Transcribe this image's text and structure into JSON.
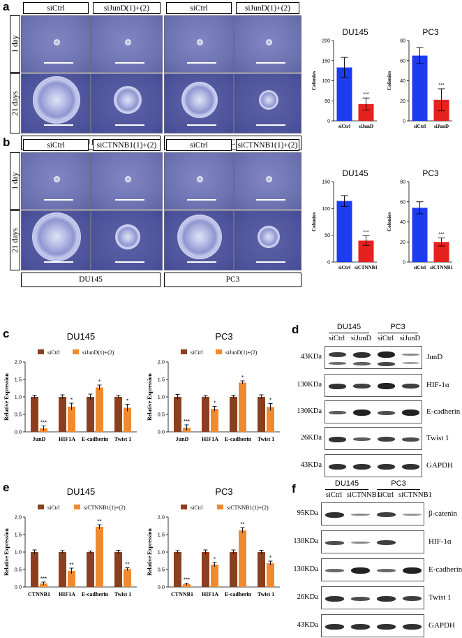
{
  "panels": {
    "a": {
      "letter": "a",
      "columns": [
        "siCtrl",
        "siJunD(1)+(2)",
        "siCtrl",
        "siJunD(1)+(2)"
      ],
      "rows": [
        "1 day",
        "21 days"
      ],
      "cell_lines": [
        "DU145",
        "PC3"
      ]
    },
    "b": {
      "letter": "b",
      "columns": [
        "siCtrl",
        "siCTNNB1(1)+(2)",
        "siCtrl",
        "siCTNNB1(1)+(2)"
      ],
      "rows": [
        "1 day",
        "21 days"
      ],
      "cell_lines": [
        "DU145",
        "PC3"
      ]
    },
    "c": {
      "letter": "c"
    },
    "d": {
      "letter": "d",
      "groups": [
        "DU145",
        "PC3"
      ],
      "lanes": [
        "siCtrl",
        "siJunD",
        "siCtrl",
        "siJunD"
      ],
      "rows": [
        {
          "kda": "43KDa",
          "protein": "JunD"
        },
        {
          "kda": "130KDa",
          "protein": "HIF-1α"
        },
        {
          "kda": "130KDa",
          "protein": "E-cadherin"
        },
        {
          "kda": "26KDa",
          "protein": "Twist 1"
        },
        {
          "kda": "43KDa",
          "protein": "GAPDH"
        }
      ]
    },
    "e": {
      "letter": "e"
    },
    "f": {
      "letter": "f",
      "groups": [
        "DU145",
        "PC3"
      ],
      "lanes": [
        "siCtrl",
        "siCTNNB1",
        "siCtrl",
        "siCTNNB1"
      ],
      "rows": [
        {
          "kda": "95KDa",
          "protein": "β-catenin"
        },
        {
          "kda": "130KDa",
          "protein": "HIF-1α"
        },
        {
          "kda": "130KDa",
          "protein": "E-cadherin"
        },
        {
          "kda": "26KDa",
          "protein": "Twist 1"
        },
        {
          "kda": "43KDa",
          "protein": "GAPDH"
        }
      ]
    }
  },
  "chart_data": [
    {
      "id": "a-du145",
      "type": "bar",
      "title": "DU145",
      "ylabel": "Colonies",
      "categories": [
        "siCtrl",
        "siJunD"
      ],
      "values": [
        133,
        42
      ],
      "errors": [
        25,
        15
      ],
      "ylim": [
        0,
        200
      ],
      "yticks": [
        0,
        50,
        100,
        150,
        200
      ],
      "colors": [
        "#1d3cf0",
        "#e5221d"
      ],
      "sig": [
        "",
        "***"
      ]
    },
    {
      "id": "a-pc3",
      "type": "bar",
      "title": "PC3",
      "ylabel": "Colonies",
      "categories": [
        "siCtrl",
        "siJunD"
      ],
      "values": [
        65,
        21
      ],
      "errors": [
        8,
        11
      ],
      "ylim": [
        0,
        80
      ],
      "yticks": [
        0,
        20,
        40,
        60,
        80
      ],
      "colors": [
        "#1d3cf0",
        "#e5221d"
      ],
      "sig": [
        "",
        "***"
      ]
    },
    {
      "id": "b-du145",
      "type": "bar",
      "title": "DU145",
      "ylabel": "Colonies",
      "categories": [
        "siCtrl",
        "siCTNNB1"
      ],
      "values": [
        114,
        40
      ],
      "errors": [
        10,
        9
      ],
      "ylim": [
        0,
        150
      ],
      "yticks": [
        0,
        50,
        100,
        150
      ],
      "colors": [
        "#1d3cf0",
        "#e5221d"
      ],
      "sig": [
        "",
        "***"
      ]
    },
    {
      "id": "b-pc3",
      "type": "bar",
      "title": "PC3",
      "ylabel": "Colonies",
      "categories": [
        "siCtrl",
        "siCTNNB1"
      ],
      "values": [
        54,
        20
      ],
      "errors": [
        6,
        4
      ],
      "ylim": [
        0,
        80
      ],
      "yticks": [
        0,
        20,
        40,
        60,
        80
      ],
      "colors": [
        "#1d3cf0",
        "#e5221d"
      ],
      "sig": [
        "",
        "***"
      ]
    },
    {
      "id": "c-du145",
      "type": "grouped-bar",
      "title": "DU145",
      "ylabel": "Relative Expression",
      "categories": [
        "JunD",
        "HIF1A",
        "E-cadherin",
        "Twist 1"
      ],
      "series": [
        {
          "name": "siCtrl",
          "color": "#8b3f1e",
          "values": [
            1.0,
            1.0,
            1.0,
            1.0
          ],
          "errors": [
            0.05,
            0.06,
            0.08,
            0.04
          ]
        },
        {
          "name": "siJunD(1)+(2)",
          "color": "#ef8a30",
          "values": [
            0.1,
            0.72,
            1.27,
            0.69
          ],
          "errors": [
            0.07,
            0.1,
            0.07,
            0.1
          ]
        }
      ],
      "sig": [
        "***",
        "*",
        "*",
        "*"
      ],
      "ylim": [
        0,
        2.0
      ],
      "yticks": [
        "0.0",
        "0.5",
        "1.0",
        "1.5",
        "2.0"
      ]
    },
    {
      "id": "c-pc3",
      "type": "grouped-bar",
      "title": "PC3",
      "ylabel": "Relative Expression",
      "categories": [
        "JunD",
        "HIF1A",
        "E-cadherin",
        "Twist 1"
      ],
      "series": [
        {
          "name": "siCtrl",
          "color": "#8b3f1e",
          "values": [
            1.0,
            1.0,
            1.0,
            1.0
          ],
          "errors": [
            0.07,
            0.04,
            0.05,
            0.06
          ]
        },
        {
          "name": "siJunD(1)+(2)",
          "color": "#ef8a30",
          "values": [
            0.12,
            0.66,
            1.41,
            0.71
          ],
          "errors": [
            0.08,
            0.07,
            0.05,
            0.1
          ]
        }
      ],
      "sig": [
        "***",
        "*",
        "*",
        "*"
      ],
      "ylim": [
        0,
        2.0
      ],
      "yticks": [
        "0.0",
        "0.5",
        "1.0",
        "1.5",
        "2.0"
      ]
    },
    {
      "id": "e-du145",
      "type": "grouped-bar",
      "title": "DU145",
      "ylabel": "Relative Expression",
      "categories": [
        "CTNNB1",
        "HIF1A",
        "E-cadherin",
        "Twist 1"
      ],
      "series": [
        {
          "name": "siCtrl",
          "color": "#8b3f1e",
          "values": [
            1.0,
            1.0,
            1.0,
            1.0
          ],
          "errors": [
            0.06,
            0.04,
            0.03,
            0.05
          ]
        },
        {
          "name": "siCTNNB1(1)+(2)",
          "color": "#ef8a30",
          "values": [
            0.1,
            0.46,
            1.72,
            0.51
          ],
          "errors": [
            0.04,
            0.08,
            0.06,
            0.04
          ]
        }
      ],
      "sig": [
        "***",
        "**",
        "**",
        "**"
      ],
      "ylim": [
        0,
        2.0
      ],
      "yticks": [
        "0.0",
        "0.5",
        "1.0",
        "1.5",
        "2.0"
      ]
    },
    {
      "id": "e-pc3",
      "type": "grouped-bar",
      "title": "PC3",
      "ylabel": "Relative Expression",
      "categories": [
        "CTNNB1",
        "HIF1A",
        "E-cadherin",
        "Twist 1"
      ],
      "series": [
        {
          "name": "siCtrl",
          "color": "#8b3f1e",
          "values": [
            1.0,
            1.0,
            1.0,
            1.0
          ],
          "errors": [
            0.04,
            0.06,
            0.06,
            0.05
          ]
        },
        {
          "name": "siCTNNB1(1)+(2)",
          "color": "#ef8a30",
          "values": [
            0.08,
            0.64,
            1.62,
            0.68
          ],
          "errors": [
            0.03,
            0.06,
            0.08,
            0.06
          ]
        }
      ],
      "sig": [
        "***",
        "*",
        "**",
        "*"
      ],
      "ylim": [
        0,
        2.0
      ],
      "yticks": [
        "0.0",
        "0.5",
        "1.0",
        "1.5",
        "2.0"
      ]
    }
  ]
}
